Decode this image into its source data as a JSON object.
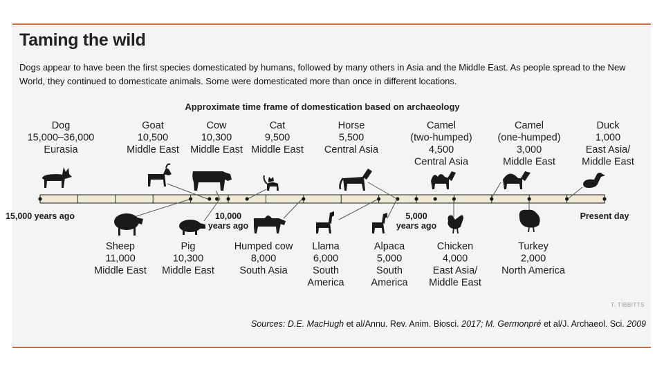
{
  "header": {
    "title": "Taming the wild",
    "intro": "Dogs appear to have been the first species domesticated by humans, followed by many others in Asia and the Middle East. As people spread to the New World, they continued to domesticate animals. Some were domesticated more than once in different locations."
  },
  "diagram": {
    "subtitle": "Approximate time frame of domestication based on archaeology",
    "axis": {
      "start_years_ago": 15000,
      "end_years_ago": 0,
      "tick_interval": 1000,
      "labels": [
        {
          "text": [
            "15,000 years ago"
          ],
          "years_ago": 15000
        },
        {
          "text": [
            "10,000",
            "years ago"
          ],
          "years_ago": 10000
        },
        {
          "text": [
            "5,000",
            "years ago"
          ],
          "years_ago": 5000
        },
        {
          "text": [
            "Present day"
          ],
          "years_ago": 0
        }
      ]
    },
    "animals_above": [
      {
        "name": "Dog",
        "lines": [
          "Dog",
          "15,000–36,000",
          "Eurasia"
        ],
        "years_ago": 15000,
        "icon": "dog-icon"
      },
      {
        "name": "Goat",
        "lines": [
          "Goat",
          "10,500",
          "Middle East"
        ],
        "years_ago": 10500,
        "icon": "goat-icon"
      },
      {
        "name": "Cow",
        "lines": [
          "Cow",
          "10,300",
          "Middle East"
        ],
        "years_ago": 10300,
        "icon": "cow-icon"
      },
      {
        "name": "Cat",
        "lines": [
          "Cat",
          "9,500",
          "Middle East"
        ],
        "years_ago": 9500,
        "icon": "cat-icon"
      },
      {
        "name": "Horse",
        "lines": [
          "Horse",
          "5,500",
          "Central Asia"
        ],
        "years_ago": 5500,
        "icon": "horse-icon"
      },
      {
        "name": "Camel (two-humped)",
        "lines": [
          "Camel",
          "(two-humped)",
          "4,500",
          "Central Asia"
        ],
        "years_ago": 4500,
        "icon": "bactrian-camel-icon"
      },
      {
        "name": "Camel (one-humped)",
        "lines": [
          "Camel",
          "(one-humped)",
          "3,000",
          "Middle East"
        ],
        "years_ago": 3000,
        "icon": "dromedary-camel-icon"
      },
      {
        "name": "Duck",
        "lines": [
          "Duck",
          "1,000",
          "East Asia/",
          "Middle East"
        ],
        "years_ago": 1000,
        "icon": "duck-icon"
      }
    ],
    "animals_below": [
      {
        "name": "Sheep",
        "lines": [
          "Sheep",
          "11,000",
          "Middle East"
        ],
        "years_ago": 11000,
        "icon": "sheep-icon"
      },
      {
        "name": "Pig",
        "lines": [
          "Pig",
          "10,300",
          "Middle East"
        ],
        "years_ago": 10300,
        "icon": "pig-icon"
      },
      {
        "name": "Humped cow",
        "lines": [
          "Humped cow",
          "8,000",
          "South Asia"
        ],
        "years_ago": 8000,
        "icon": "humped-cow-icon"
      },
      {
        "name": "Llama",
        "lines": [
          "Llama",
          "6,000",
          "South",
          "America"
        ],
        "years_ago": 6000,
        "icon": "llama-icon"
      },
      {
        "name": "Alpaca",
        "lines": [
          "Alpaca",
          "5,000",
          "South",
          "America"
        ],
        "years_ago": 5000,
        "icon": "alpaca-icon"
      },
      {
        "name": "Chicken",
        "lines": [
          "Chicken",
          "4,000",
          "East Asia/",
          "Middle East"
        ],
        "years_ago": 4000,
        "icon": "chicken-icon"
      },
      {
        "name": "Turkey",
        "lines": [
          "Turkey",
          "2,000",
          "North America"
        ],
        "years_ago": 2000,
        "icon": "turkey-icon"
      }
    ],
    "colors": {
      "bar": "#efe9d6",
      "ink": "#1a1a1a",
      "rule": "#d26a3c",
      "panel": "#f4f4f4"
    }
  },
  "footer": {
    "credit": "T. TIBBITTS",
    "sources": {
      "label": "Sources:",
      "a_author": "D.E. MacHugh",
      "a_rest": "et al/Annu. Rev. Anim. Biosci.",
      "a_year": "2017;",
      "b_author": "M. Germonpré",
      "b_rest": "et al/J. Archaeol. Sci.",
      "b_year": "2009"
    }
  }
}
